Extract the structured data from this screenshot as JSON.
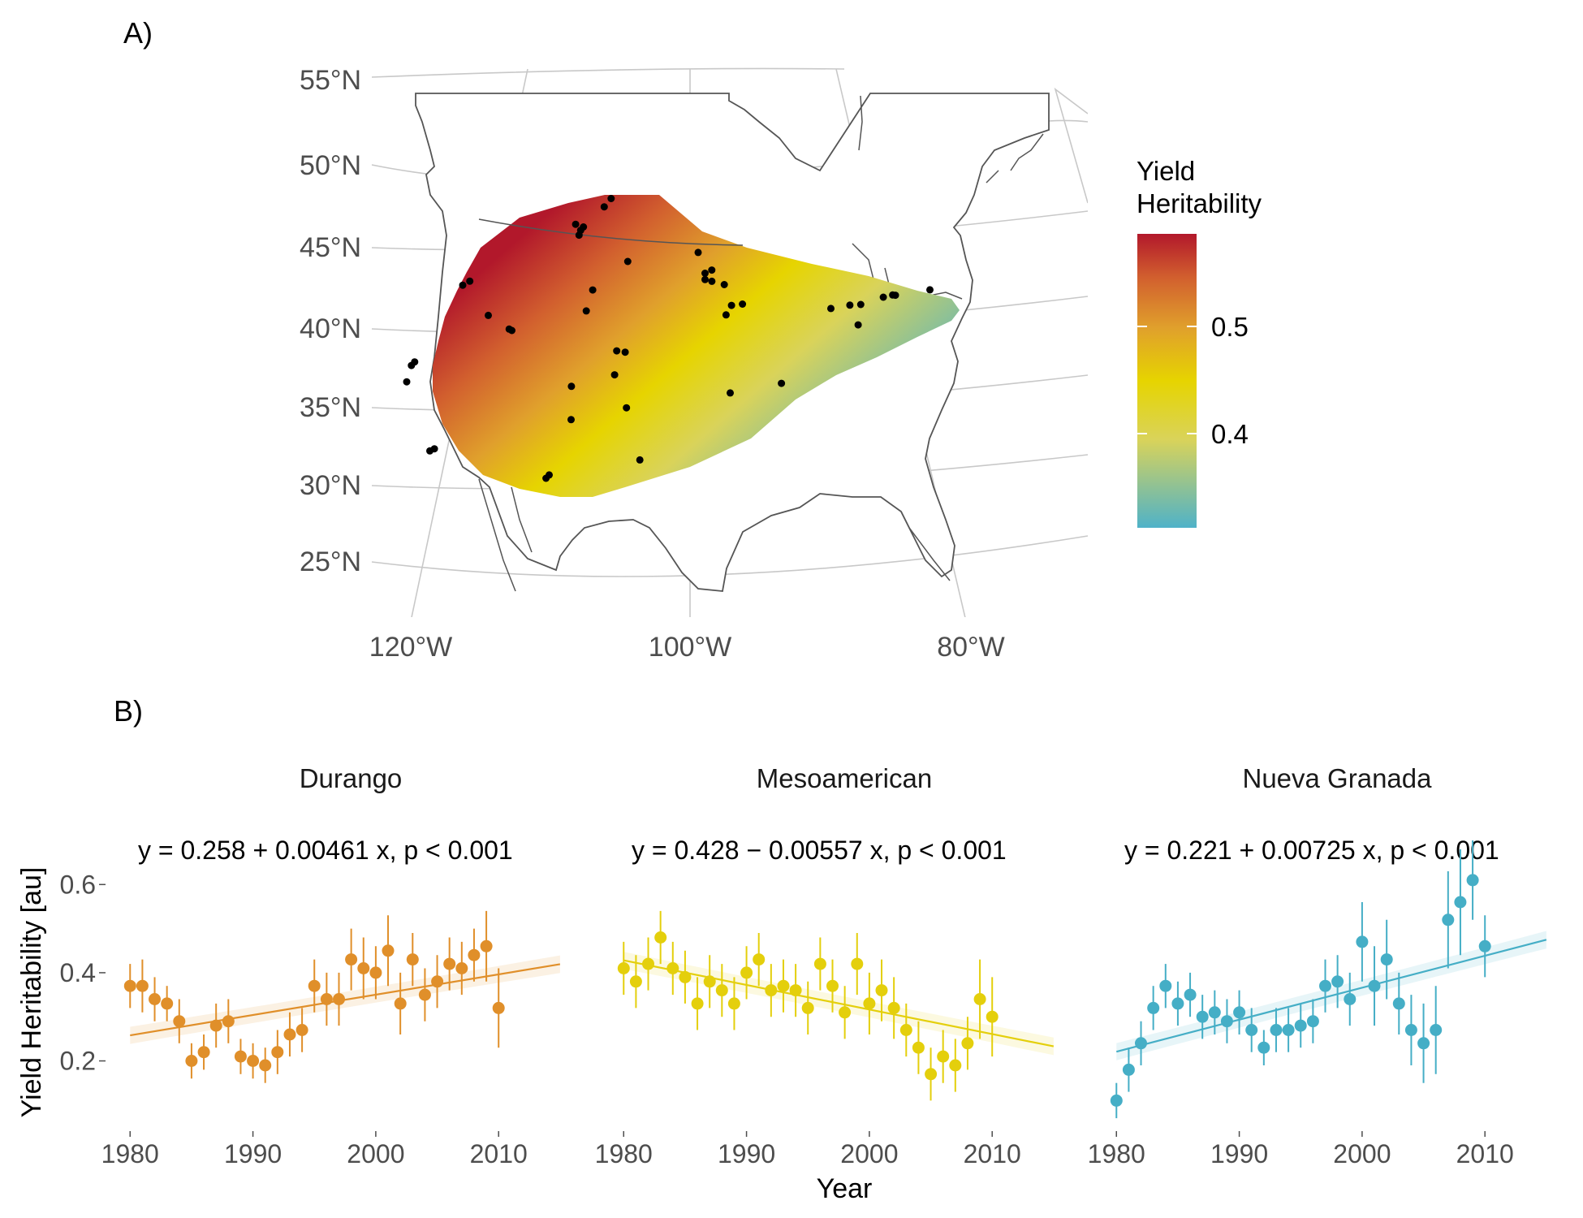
{
  "figure": {
    "panel_a_label": "A)",
    "panel_b_label": "B)"
  },
  "map": {
    "lat_labels": [
      "55°N",
      "50°N",
      "45°N",
      "40°N",
      "35°N",
      "30°N",
      "25°N"
    ],
    "lon_labels": [
      "120°W",
      "100°W",
      "80°W"
    ],
    "legend": {
      "title_lines": [
        "Yield",
        "Heritability"
      ],
      "ticks": [
        "0.5",
        "0.4"
      ],
      "colors": [
        "#4fb2c8",
        "#d9d35a",
        "#e6d400",
        "#e0a02c",
        "#d2602e",
        "#b2182b"
      ]
    },
    "sites_lonlat": [
      [
        -108.6,
        46.8
      ],
      [
        -108.2,
        46.4
      ],
      [
        -108.0,
        46.6
      ],
      [
        -108.3,
        46.1
      ],
      [
        -106.0,
        48.3
      ],
      [
        -106.5,
        47.8
      ],
      [
        -116.2,
        43.8
      ],
      [
        -116.7,
        43.6
      ],
      [
        -114.6,
        41.5
      ],
      [
        -113.0,
        40.5
      ],
      [
        -112.8,
        40.4
      ],
      [
        -107.5,
        41.3
      ],
      [
        -107.1,
        42.6
      ],
      [
        -104.6,
        44.3
      ],
      [
        -105.2,
        38.7
      ],
      [
        -104.6,
        38.6
      ],
      [
        -105.3,
        37.2
      ],
      [
        -108.3,
        36.6
      ],
      [
        -108.2,
        34.5
      ],
      [
        -104.4,
        35.1
      ],
      [
        -103.4,
        31.8
      ],
      [
        -109.5,
        31.1
      ],
      [
        -109.7,
        30.9
      ],
      [
        -119.6,
        39.1
      ],
      [
        -119.8,
        38.9
      ],
      [
        -120.0,
        37.9
      ],
      [
        -117.5,
        33.4
      ],
      [
        -117.8,
        33.3
      ],
      [
        -99.4,
        44.8
      ],
      [
        -98.9,
        43.5
      ],
      [
        -98.4,
        43.7
      ],
      [
        -98.9,
        43.1
      ],
      [
        -98.4,
        43.0
      ],
      [
        -97.5,
        42.8
      ],
      [
        -97.4,
        40.9
      ],
      [
        -96.2,
        41.6
      ],
      [
        -97.0,
        41.5
      ],
      [
        -97.2,
        36.0
      ],
      [
        -93.6,
        36.7
      ],
      [
        -88.4,
        41.9
      ],
      [
        -89.8,
        41.6
      ],
      [
        -87.6,
        42.0
      ],
      [
        -85.9,
        42.6
      ],
      [
        -85.2,
        42.8
      ],
      [
        -85.0,
        42.8
      ],
      [
        -87.9,
        40.7
      ],
      [
        -82.4,
        43.4
      ]
    ]
  },
  "chart_data": [
    {
      "type": "scatter",
      "title": "Durango",
      "equation": "y  =  0.258 + 0.00461  x,  p < 0.001",
      "color": "#e08f2a",
      "x": [
        1980,
        1981,
        1982,
        1983,
        1984,
        1985,
        1986,
        1987,
        1988,
        1989,
        1990,
        1991,
        1992,
        1993,
        1994,
        1995,
        1996,
        1997,
        1998,
        1999,
        2000,
        2001,
        2002,
        2003,
        2004,
        2005,
        2006,
        2007,
        2008,
        2009,
        2010
      ],
      "y": [
        0.37,
        0.37,
        0.34,
        0.33,
        0.29,
        0.2,
        0.22,
        0.28,
        0.29,
        0.21,
        0.2,
        0.19,
        0.22,
        0.26,
        0.27,
        0.37,
        0.34,
        0.34,
        0.43,
        0.41,
        0.4,
        0.45,
        0.33,
        0.43,
        0.35,
        0.38,
        0.42,
        0.41,
        0.44,
        0.46,
        0.32
      ],
      "err": [
        0.05,
        0.06,
        0.05,
        0.04,
        0.05,
        0.04,
        0.04,
        0.05,
        0.05,
        0.04,
        0.04,
        0.04,
        0.05,
        0.05,
        0.05,
        0.06,
        0.06,
        0.06,
        0.07,
        0.07,
        0.06,
        0.08,
        0.07,
        0.06,
        0.06,
        0.06,
        0.06,
        0.06,
        0.06,
        0.08,
        0.09
      ],
      "trend": {
        "intercept": 0.258,
        "slope": 0.00461,
        "x_range": [
          1980,
          2015
        ]
      },
      "xlim": [
        1978,
        2016
      ],
      "xticks": [
        "1980",
        "1990",
        "2000",
        "2010"
      ]
    },
    {
      "type": "scatter",
      "title": "Mesoamerican",
      "equation": "y  =  0.428 − 0.00557  x,  p < 0.001",
      "color": "#e4cf0c",
      "x": [
        1980,
        1981,
        1982,
        1983,
        1984,
        1985,
        1986,
        1987,
        1988,
        1989,
        1990,
        1991,
        1992,
        1993,
        1994,
        1995,
        1996,
        1997,
        1998,
        1999,
        2000,
        2001,
        2002,
        2003,
        2004,
        2005,
        2006,
        2007,
        2008,
        2009,
        2010
      ],
      "y": [
        0.41,
        0.38,
        0.42,
        0.48,
        0.41,
        0.39,
        0.33,
        0.38,
        0.36,
        0.33,
        0.4,
        0.43,
        0.36,
        0.37,
        0.36,
        0.32,
        0.42,
        0.37,
        0.31,
        0.42,
        0.33,
        0.36,
        0.32,
        0.27,
        0.23,
        0.17,
        0.21,
        0.19,
        0.24,
        0.34,
        0.3
      ],
      "err": [
        0.06,
        0.06,
        0.06,
        0.06,
        0.06,
        0.06,
        0.06,
        0.06,
        0.06,
        0.06,
        0.06,
        0.06,
        0.06,
        0.06,
        0.06,
        0.06,
        0.06,
        0.06,
        0.06,
        0.07,
        0.07,
        0.07,
        0.07,
        0.06,
        0.06,
        0.06,
        0.06,
        0.06,
        0.06,
        0.09,
        0.09
      ],
      "trend": {
        "intercept": 0.428,
        "slope": -0.00557,
        "x_range": [
          1980,
          2015
        ]
      },
      "xlim": [
        1978,
        2016
      ],
      "xticks": [
        "1980",
        "1990",
        "2000",
        "2010"
      ]
    },
    {
      "type": "scatter",
      "title": "Nueva Granada",
      "equation": "y  =  0.221 + 0.00725  x,  p < 0.001",
      "color": "#45aec6",
      "x": [
        1980,
        1981,
        1982,
        1983,
        1984,
        1985,
        1986,
        1987,
        1988,
        1989,
        1990,
        1991,
        1992,
        1993,
        1994,
        1995,
        1996,
        1997,
        1998,
        1999,
        2000,
        2001,
        2002,
        2003,
        2004,
        2005,
        2006,
        2007,
        2008,
        2009,
        2010
      ],
      "y": [
        0.11,
        0.18,
        0.24,
        0.32,
        0.37,
        0.33,
        0.35,
        0.3,
        0.31,
        0.29,
        0.31,
        0.27,
        0.23,
        0.27,
        0.27,
        0.28,
        0.29,
        0.37,
        0.38,
        0.34,
        0.47,
        0.37,
        0.43,
        0.33,
        0.27,
        0.24,
        0.27,
        0.52,
        0.56,
        0.61,
        0.46
      ],
      "err": [
        0.04,
        0.05,
        0.05,
        0.05,
        0.05,
        0.05,
        0.05,
        0.05,
        0.05,
        0.05,
        0.05,
        0.05,
        0.04,
        0.05,
        0.05,
        0.05,
        0.05,
        0.06,
        0.06,
        0.06,
        0.09,
        0.09,
        0.09,
        0.07,
        0.08,
        0.09,
        0.1,
        0.11,
        0.12,
        0.09,
        0.07
      ],
      "trend": {
        "intercept": 0.221,
        "slope": 0.00725,
        "x_range": [
          1980,
          2015
        ]
      },
      "xlim": [
        1978,
        2016
      ],
      "xticks": [
        "1980",
        "1990",
        "2000",
        "2010"
      ]
    }
  ],
  "shared_axes": {
    "ylabel": "Yield Heritability [au]",
    "xlabel": "Year",
    "ylim": [
      0.05,
      0.7
    ],
    "yticks": [
      "0.6",
      "0.4",
      "0.2"
    ]
  }
}
